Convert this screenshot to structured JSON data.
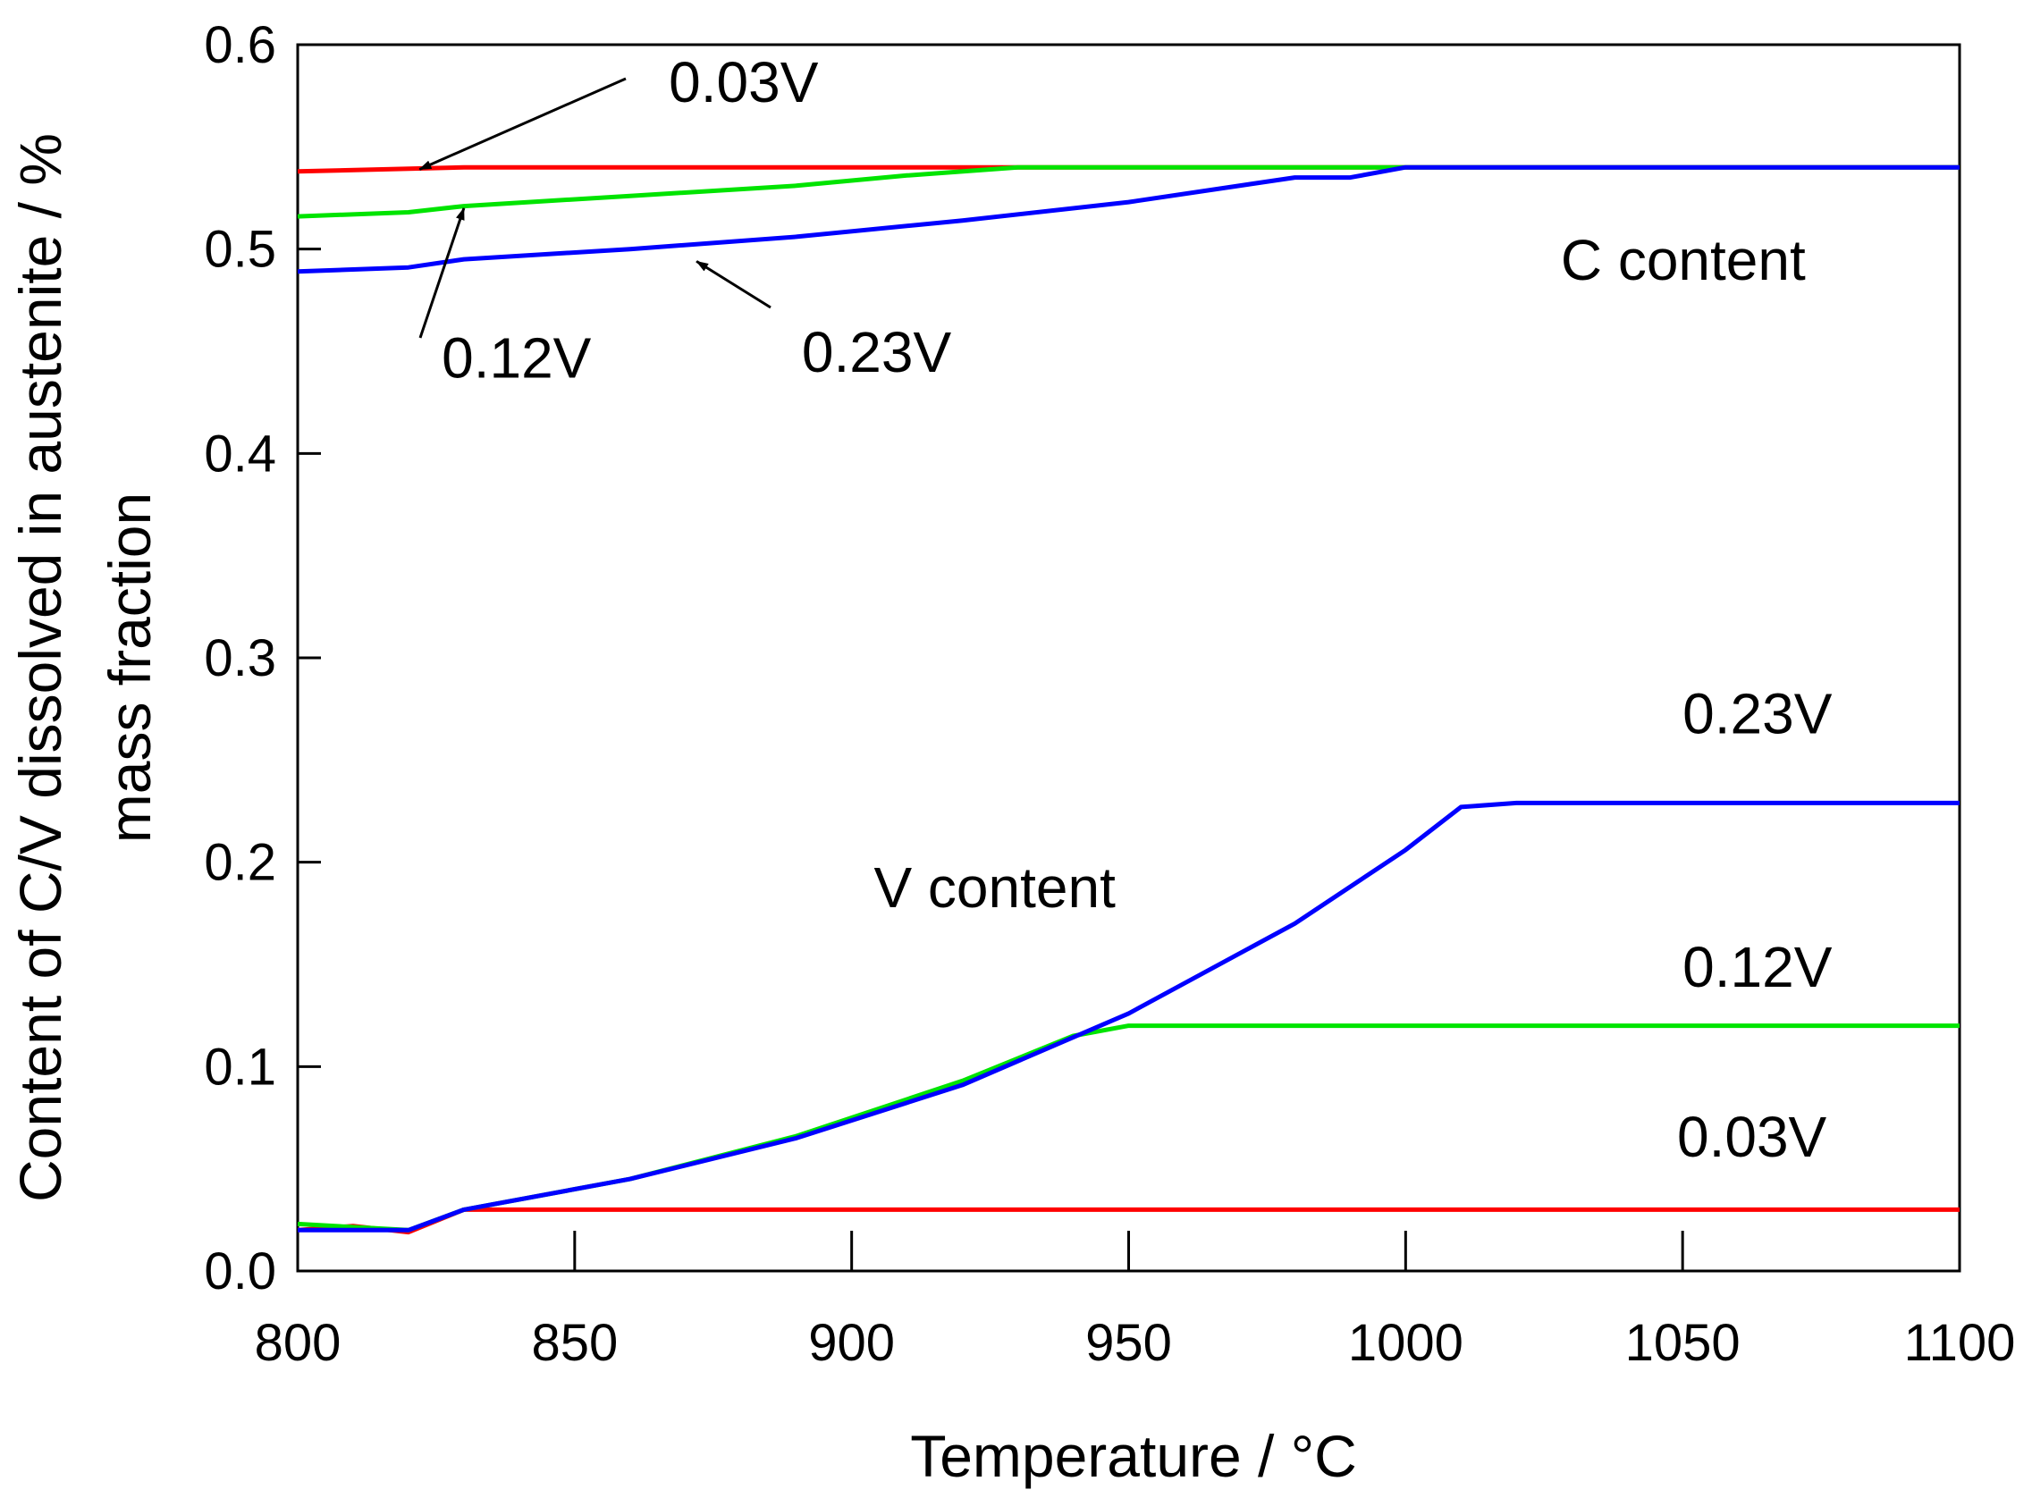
{
  "chart_data": {
    "type": "line",
    "title": "",
    "xlabel": "Temperature / °C",
    "ylabel_line1": "Content of C/V dissolved in austenite / %",
    "ylabel_line2": "mass fraction",
    "xlim": [
      800,
      1100
    ],
    "ylim": [
      0.0,
      0.6
    ],
    "grid": false,
    "x_ticks": [
      800,
      850,
      900,
      950,
      1000,
      1050,
      1100
    ],
    "x_tick_labels": [
      "800",
      "850",
      "900",
      "950",
      "1000",
      "1050",
      "1100"
    ],
    "y_ticks": [
      0.0,
      0.1,
      0.2,
      0.3,
      0.4,
      0.5,
      0.6
    ],
    "y_tick_labels": [
      "0.0",
      "0.1",
      "0.2",
      "0.3",
      "0.4",
      "0.5",
      "0.6"
    ],
    "series": [
      {
        "name": "C content 0.03V",
        "color": "#ff0000",
        "points": [
          [
            800,
            0.538
          ],
          [
            830,
            0.54
          ],
          [
            930,
            0.54
          ],
          [
            1100,
            0.54
          ]
        ]
      },
      {
        "name": "C content 0.12V",
        "color": "#00e400",
        "points": [
          [
            800,
            0.516
          ],
          [
            820,
            0.518
          ],
          [
            830,
            0.521
          ],
          [
            860,
            0.526
          ],
          [
            890,
            0.531
          ],
          [
            910,
            0.536
          ],
          [
            930,
            0.54
          ],
          [
            1100,
            0.54
          ]
        ]
      },
      {
        "name": "C content 0.23V",
        "color": "#0000ff",
        "points": [
          [
            800,
            0.489
          ],
          [
            820,
            0.491
          ],
          [
            830,
            0.495
          ],
          [
            860,
            0.5
          ],
          [
            890,
            0.506
          ],
          [
            920,
            0.514
          ],
          [
            950,
            0.523
          ],
          [
            980,
            0.535
          ],
          [
            990,
            0.535
          ],
          [
            1000,
            0.54
          ],
          [
            1100,
            0.54
          ]
        ]
      },
      {
        "name": "V content 0.03V",
        "color": "#ff0000",
        "points": [
          [
            800,
            0.02
          ],
          [
            810,
            0.022
          ],
          [
            820,
            0.019
          ],
          [
            830,
            0.03
          ],
          [
            1100,
            0.03
          ]
        ]
      },
      {
        "name": "V content 0.12V",
        "color": "#00e400",
        "points": [
          [
            800,
            0.023
          ],
          [
            820,
            0.02
          ],
          [
            830,
            0.03
          ],
          [
            860,
            0.045
          ],
          [
            890,
            0.066
          ],
          [
            920,
            0.093
          ],
          [
            940,
            0.115
          ],
          [
            950,
            0.12
          ],
          [
            1100,
            0.12
          ]
        ]
      },
      {
        "name": "V content 0.23V",
        "color": "#0000ff",
        "points": [
          [
            800,
            0.02
          ],
          [
            820,
            0.02
          ],
          [
            830,
            0.03
          ],
          [
            860,
            0.045
          ],
          [
            890,
            0.065
          ],
          [
            920,
            0.091
          ],
          [
            950,
            0.126
          ],
          [
            980,
            0.17
          ],
          [
            1000,
            0.206
          ],
          [
            1010,
            0.227
          ],
          [
            1020,
            0.229
          ],
          [
            1100,
            0.229
          ]
        ]
      }
    ],
    "annotations": [
      {
        "name": "label-c-003v",
        "text": "0.03V",
        "x": 867,
        "y": 0.572,
        "arrow_to": [
          822,
          0.539
        ]
      },
      {
        "name": "label-c-012v",
        "text": "0.12V",
        "x": 826,
        "y": 0.437,
        "arrow_to": [
          830,
          0.52
        ]
      },
      {
        "name": "label-c-023v",
        "text": "0.23V",
        "x": 891,
        "y": 0.44,
        "arrow_to": [
          872,
          0.494
        ]
      },
      {
        "name": "label-c-content",
        "text": "C content",
        "x": 1028,
        "y": 0.485
      },
      {
        "name": "label-v-content",
        "text": "V content",
        "x": 904,
        "y": 0.178
      },
      {
        "name": "label-v-023v",
        "text": "0.23V",
        "x": 1050,
        "y": 0.263
      },
      {
        "name": "label-v-012v",
        "text": "0.12V",
        "x": 1050,
        "y": 0.139
      },
      {
        "name": "label-v-003v",
        "text": "0.03V",
        "x": 1049,
        "y": 0.056
      }
    ]
  }
}
